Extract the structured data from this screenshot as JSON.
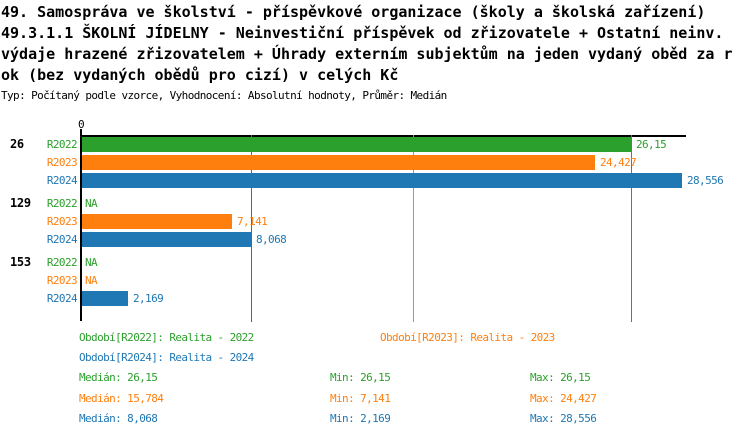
{
  "title": {
    "line1": "49. Samospráva ve školství - příspěvkové organizace (školy a školská zařízení)",
    "line2": "49.3.1.1 ŠKOLNÍ JÍDELNY - Neinvestiční příspěvek od zřizovatele + Ostatní neinv.",
    "line3": "výdaje hrazené zřizovatelem + Úhrady externím subjektům na jeden vydaný oběd za r",
    "line4": "ok (bez vydaných obědů pro cizí) v celých Kč",
    "meta": "Typ: Počítaný podle vzorce, Vyhodnocení: Absolutní hodnoty, Průměr: Medián"
  },
  "colors": {
    "r2022_green": "#2ca02c",
    "r2023_orange": "#ff7f0e",
    "r2024_blue": "#1f77b4",
    "axis_black": "#000000",
    "background": "#ffffff"
  },
  "chart_data": {
    "type": "bar",
    "orientation": "horizontal",
    "axis_zero_label": "0",
    "xlim": [
      0,
      28.556
    ],
    "grid": false,
    "value_format": "czech decimal comma",
    "groups": [
      {
        "id": "26",
        "rows": [
          {
            "series": "R2022",
            "value": 26.15,
            "label": "26,15"
          },
          {
            "series": "R2023",
            "value": 24.427,
            "label": "24,427"
          },
          {
            "series": "R2024",
            "value": 28.556,
            "label": "28,556"
          }
        ]
      },
      {
        "id": "129",
        "rows": [
          {
            "series": "R2022",
            "value": null,
            "label": "NA"
          },
          {
            "series": "R2023",
            "value": 7.141,
            "label": "7,141"
          },
          {
            "series": "R2024",
            "value": 8.068,
            "label": "8,068"
          }
        ]
      },
      {
        "id": "153",
        "rows": [
          {
            "series": "R2022",
            "value": null,
            "label": "NA"
          },
          {
            "series": "R2023",
            "value": null,
            "label": "NA"
          },
          {
            "series": "R2024",
            "value": 2.169,
            "label": "2,169"
          }
        ]
      }
    ],
    "series": [
      {
        "name": "R2022",
        "color": "#2ca02c",
        "median": 26.15
      },
      {
        "name": "R2023",
        "color": "#ff7f0e",
        "median": 15.784
      },
      {
        "name": "R2024",
        "color": "#1f77b4",
        "median": 8.068
      }
    ]
  },
  "legend": {
    "items": [
      {
        "series": "R2022",
        "label": "Období[R2022]: Realita - 2022"
      },
      {
        "series": "R2023",
        "label": "Období[R2023]: Realita - 2023"
      },
      {
        "series": "R2024",
        "label": "Období[R2024]: Realita - 2024"
      }
    ]
  },
  "stats": {
    "rows": [
      {
        "series": "R2022",
        "median": "Medián: 26,15",
        "min": "Min: 26,15",
        "max": "Max: 26,15"
      },
      {
        "series": "R2023",
        "median": "Medián: 15,784",
        "min": "Min: 7,141",
        "max": "Max: 24,427"
      },
      {
        "series": "R2024",
        "median": "Medián: 8,068",
        "min": "Min: 2,169",
        "max": "Max: 28,556"
      }
    ]
  }
}
